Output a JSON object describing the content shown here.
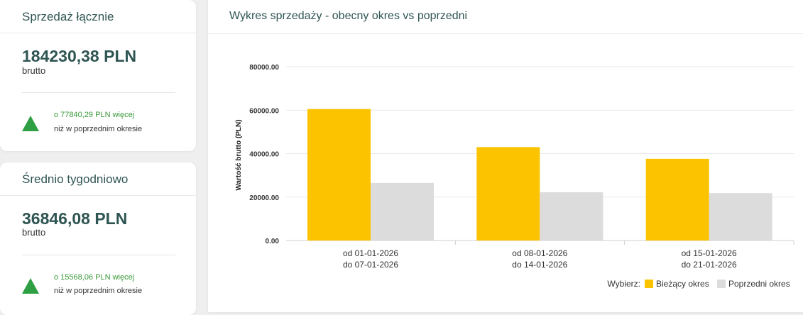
{
  "cards": [
    {
      "title": "Sprzedaż łącznie",
      "value": "184230,38 PLN",
      "value_label": "brutto",
      "delta": "o 77840,29 PLN więcej",
      "delta_text": "niż w poprzednim okresie"
    },
    {
      "title": "Średnio tygodniowo",
      "value": "36846,08 PLN",
      "value_label": "brutto",
      "delta": "o 15568,06 PLN więcej",
      "delta_text": "niż w poprzednim okresie"
    }
  ],
  "chart_panel": {
    "title": "Wykres sprzedaży - obecny okres vs poprzedni"
  },
  "colors": {
    "current": "#fcc300",
    "previous": "#dcdcdc",
    "accent_green": "#2ea043",
    "heading": "#2f5553"
  },
  "chart_data": {
    "type": "bar",
    "categories": [
      [
        "od 01-01-2026",
        "do 07-01-2026"
      ],
      [
        "od 08-01-2026",
        "do 14-01-2026"
      ],
      [
        "od 15-01-2026",
        "do 21-01-2026"
      ]
    ],
    "series": [
      {
        "name": "Bieżący okres",
        "values": [
          60500,
          43000,
          37600
        ]
      },
      {
        "name": "Poprzedni okres",
        "values": [
          26500,
          22200,
          21800
        ]
      }
    ],
    "ylabel": "Wartość brutto (PLN)",
    "yticks": [
      "0.00",
      "20000.00",
      "40000.00",
      "60000.00",
      "80000.00"
    ],
    "ylim": [
      0,
      80000
    ],
    "legend_prefix": "Wybierz:",
    "legend_position": "bottom-right",
    "grid": true
  }
}
